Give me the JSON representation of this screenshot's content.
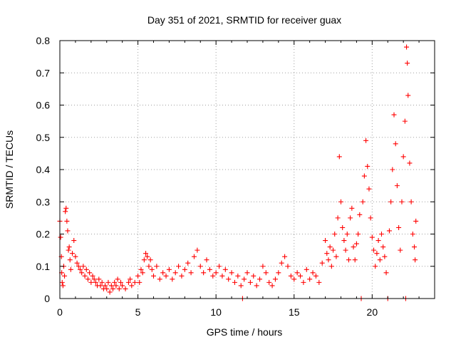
{
  "chart_data": {
    "type": "scatter",
    "title": "Day 351 of 2021, SRMTID for receiver guax",
    "xlabel": "GPS time / hours",
    "ylabel": "SRMTID / TECUs",
    "xlim": [
      0,
      24
    ],
    "ylim": [
      0,
      0.8
    ],
    "xticks": [
      0,
      5,
      10,
      15,
      20
    ],
    "xtick_labels": [
      "0",
      "5",
      "10",
      "15",
      "20"
    ],
    "yticks": [
      0,
      0.1,
      0.2,
      0.3,
      0.4,
      0.5,
      0.6,
      0.7,
      0.8
    ],
    "ytick_labels": [
      "0",
      "0.1",
      "0.2",
      "0.3",
      "0.4",
      "0.5",
      "0.6",
      "0.7",
      "0.8"
    ],
    "grid": true,
    "marker": "+",
    "series": [
      {
        "name": "SRMTID",
        "color": "#ff0000",
        "points": [
          [
            0.0,
            0.24
          ],
          [
            0.05,
            0.19
          ],
          [
            0.1,
            0.13
          ],
          [
            0.12,
            0.08
          ],
          [
            0.15,
            0.05
          ],
          [
            0.2,
            0.04
          ],
          [
            0.25,
            0.1
          ],
          [
            0.3,
            0.07
          ],
          [
            0.35,
            0.27
          ],
          [
            0.4,
            0.28
          ],
          [
            0.45,
            0.24
          ],
          [
            0.5,
            0.21
          ],
          [
            0.55,
            0.15
          ],
          [
            0.6,
            0.16
          ],
          [
            0.65,
            0.12
          ],
          [
            0.7,
            0.09
          ],
          [
            0.8,
            0.14
          ],
          [
            0.9,
            0.18
          ],
          [
            1.0,
            0.13
          ],
          [
            1.1,
            0.11
          ],
          [
            1.2,
            0.1
          ],
          [
            1.3,
            0.09
          ],
          [
            1.4,
            0.08
          ],
          [
            1.5,
            0.1
          ],
          [
            1.6,
            0.07
          ],
          [
            1.7,
            0.09
          ],
          [
            1.8,
            0.06
          ],
          [
            1.9,
            0.08
          ],
          [
            2.0,
            0.05
          ],
          [
            2.1,
            0.07
          ],
          [
            2.2,
            0.06
          ],
          [
            2.3,
            0.05
          ],
          [
            2.4,
            0.04
          ],
          [
            2.5,
            0.06
          ],
          [
            2.6,
            0.04
          ],
          [
            2.7,
            0.05
          ],
          [
            2.8,
            0.03
          ],
          [
            2.9,
            0.04
          ],
          [
            3.0,
            0.03
          ],
          [
            3.1,
            0.05
          ],
          [
            3.2,
            0.02
          ],
          [
            3.3,
            0.04
          ],
          [
            3.4,
            0.03
          ],
          [
            3.5,
            0.05
          ],
          [
            3.6,
            0.04
          ],
          [
            3.7,
            0.06
          ],
          [
            3.8,
            0.03
          ],
          [
            3.9,
            0.05
          ],
          [
            4.0,
            0.04
          ],
          [
            4.2,
            0.03
          ],
          [
            4.4,
            0.05
          ],
          [
            4.5,
            0.06
          ],
          [
            4.6,
            0.04
          ],
          [
            4.8,
            0.05
          ],
          [
            5.0,
            0.07
          ],
          [
            5.1,
            0.05
          ],
          [
            5.2,
            0.09
          ],
          [
            5.3,
            0.08
          ],
          [
            5.4,
            0.12
          ],
          [
            5.5,
            0.14
          ],
          [
            5.6,
            0.13
          ],
          [
            5.7,
            0.1
          ],
          [
            5.8,
            0.12
          ],
          [
            5.9,
            0.09
          ],
          [
            6.0,
            0.07
          ],
          [
            6.2,
            0.1
          ],
          [
            6.4,
            0.06
          ],
          [
            6.6,
            0.08
          ],
          [
            6.8,
            0.07
          ],
          [
            7.0,
            0.09
          ],
          [
            7.2,
            0.06
          ],
          [
            7.4,
            0.08
          ],
          [
            7.6,
            0.1
          ],
          [
            7.8,
            0.07
          ],
          [
            8.0,
            0.09
          ],
          [
            8.2,
            0.11
          ],
          [
            8.4,
            0.08
          ],
          [
            8.6,
            0.13
          ],
          [
            8.8,
            0.15
          ],
          [
            9.0,
            0.1
          ],
          [
            9.2,
            0.08
          ],
          [
            9.4,
            0.12
          ],
          [
            9.6,
            0.09
          ],
          [
            9.8,
            0.07
          ],
          [
            10.0,
            0.08
          ],
          [
            10.2,
            0.1
          ],
          [
            10.4,
            0.07
          ],
          [
            10.6,
            0.09
          ],
          [
            10.8,
            0.06
          ],
          [
            11.0,
            0.08
          ],
          [
            11.2,
            0.05
          ],
          [
            11.4,
            0.07
          ],
          [
            11.6,
            0.04
          ],
          [
            11.7,
            0.0
          ],
          [
            11.8,
            0.06
          ],
          [
            12.0,
            0.08
          ],
          [
            12.2,
            0.05
          ],
          [
            12.4,
            0.07
          ],
          [
            12.6,
            0.04
          ],
          [
            12.8,
            0.06
          ],
          [
            13.0,
            0.1
          ],
          [
            13.2,
            0.08
          ],
          [
            13.4,
            0.05
          ],
          [
            13.6,
            0.04
          ],
          [
            13.8,
            0.06
          ],
          [
            14.0,
            0.08
          ],
          [
            14.2,
            0.11
          ],
          [
            14.4,
            0.13
          ],
          [
            14.6,
            0.1
          ],
          [
            14.8,
            0.07
          ],
          [
            15.0,
            0.06
          ],
          [
            15.2,
            0.08
          ],
          [
            15.4,
            0.07
          ],
          [
            15.6,
            0.05
          ],
          [
            15.8,
            0.09
          ],
          [
            16.0,
            0.06
          ],
          [
            16.2,
            0.08
          ],
          [
            16.4,
            0.07
          ],
          [
            16.6,
            0.05
          ],
          [
            16.8,
            0.11
          ],
          [
            17.0,
            0.18
          ],
          [
            17.1,
            0.14
          ],
          [
            17.2,
            0.12
          ],
          [
            17.3,
            0.16
          ],
          [
            17.4,
            0.1
          ],
          [
            17.5,
            0.15
          ],
          [
            17.6,
            0.2
          ],
          [
            17.7,
            0.13
          ],
          [
            17.8,
            0.25
          ],
          [
            17.9,
            0.44
          ],
          [
            18.0,
            0.3
          ],
          [
            18.1,
            0.22
          ],
          [
            18.2,
            0.18
          ],
          [
            18.3,
            0.15
          ],
          [
            18.4,
            0.2
          ],
          [
            18.5,
            0.12
          ],
          [
            18.6,
            0.25
          ],
          [
            18.7,
            0.28
          ],
          [
            18.8,
            0.16
          ],
          [
            18.9,
            0.12
          ],
          [
            19.0,
            0.17
          ],
          [
            19.1,
            0.2
          ],
          [
            19.2,
            0.26
          ],
          [
            19.3,
            0.0
          ],
          [
            19.4,
            0.3
          ],
          [
            19.5,
            0.38
          ],
          [
            19.6,
            0.49
          ],
          [
            19.7,
            0.41
          ],
          [
            19.8,
            0.34
          ],
          [
            19.9,
            0.25
          ],
          [
            20.0,
            0.19
          ],
          [
            20.1,
            0.15
          ],
          [
            20.2,
            0.1
          ],
          [
            20.3,
            0.14
          ],
          [
            20.4,
            0.18
          ],
          [
            20.5,
            0.12
          ],
          [
            20.6,
            0.2
          ],
          [
            20.7,
            0.16
          ],
          [
            20.8,
            0.13
          ],
          [
            20.9,
            0.08
          ],
          [
            21.0,
            0.0
          ],
          [
            21.1,
            0.21
          ],
          [
            21.2,
            0.3
          ],
          [
            21.3,
            0.4
          ],
          [
            21.4,
            0.57
          ],
          [
            21.5,
            0.48
          ],
          [
            21.6,
            0.35
          ],
          [
            21.7,
            0.22
          ],
          [
            21.8,
            0.15
          ],
          [
            21.9,
            0.3
          ],
          [
            22.0,
            0.44
          ],
          [
            22.1,
            0.55
          ],
          [
            22.15,
            0.0
          ],
          [
            22.2,
            0.78
          ],
          [
            22.25,
            0.73
          ],
          [
            22.3,
            0.63
          ],
          [
            22.4,
            0.42
          ],
          [
            22.5,
            0.3
          ],
          [
            22.6,
            0.2
          ],
          [
            22.7,
            0.16
          ],
          [
            22.75,
            0.12
          ],
          [
            22.8,
            0.24
          ]
        ]
      }
    ]
  }
}
